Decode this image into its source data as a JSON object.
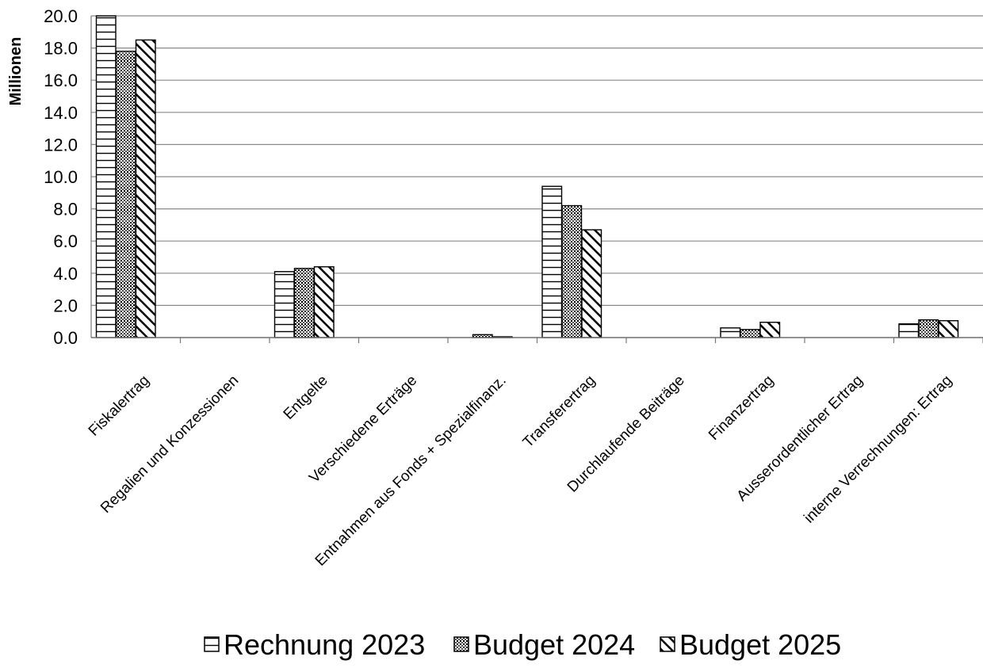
{
  "chart_data": {
    "type": "bar",
    "ylabel": "Millionen",
    "ylim": [
      0,
      20
    ],
    "yticks": [
      "0.0",
      "2.0",
      "4.0",
      "6.0",
      "8.0",
      "10.0",
      "12.0",
      "14.0",
      "16.0",
      "18.0",
      "20.0"
    ],
    "grid": true,
    "legend_position": "bottom",
    "categories": [
      "Fiskalertrag",
      "Regalien und Konzessionen",
      "Entgelte",
      "Verschiedene Erträge",
      "Entnahmen aus Fonds + Spezialfinanz.",
      "Transferertrag",
      "Durchlaufende Beiträge",
      "Finanzertrag",
      "Ausserordentlicher Ertrag",
      "interne Verrechnungen: Ertrag"
    ],
    "series": [
      {
        "name": "Rechnung 2023",
        "pattern": "horizontal-lines",
        "values": [
          20.5,
          0.0,
          4.1,
          0.0,
          0.0,
          9.4,
          0.0,
          0.6,
          0.0,
          0.85
        ]
      },
      {
        "name": "Budget 2024",
        "pattern": "dots",
        "values": [
          17.8,
          0.0,
          4.3,
          0.0,
          0.18,
          8.2,
          0.0,
          0.5,
          0.0,
          1.1
        ]
      },
      {
        "name": "Budget 2025",
        "pattern": "diagonal-lines",
        "values": [
          18.5,
          0.0,
          4.4,
          0.0,
          0.05,
          6.7,
          0.0,
          0.95,
          0.0,
          1.05
        ]
      }
    ]
  }
}
